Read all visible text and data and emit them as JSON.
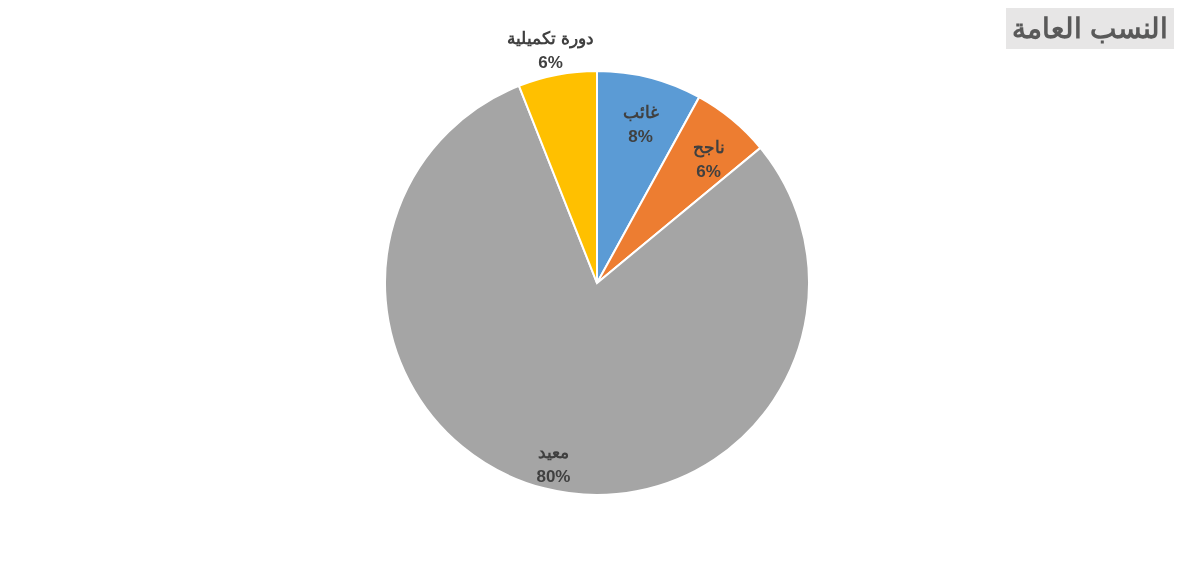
{
  "chart_data": {
    "type": "pie",
    "title": "النسب العامة",
    "categories": [
      "غائب",
      "ناجح",
      "معيد",
      "دورة تكميلية"
    ],
    "values": [
      8,
      6,
      80,
      6
    ],
    "value_labels": [
      "8%",
      "6%",
      "80%",
      "6%"
    ],
    "colors": [
      "#5b9bd5",
      "#ed7d31",
      "#a5a5a5",
      "#ffc000"
    ]
  }
}
